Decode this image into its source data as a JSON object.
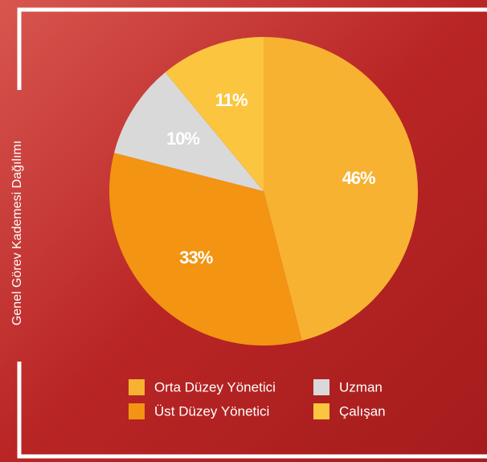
{
  "chart_data": {
    "type": "pie",
    "title": "Genel Görev Kademesi Dağılımı",
    "categories": [
      "Orta Düzey Yönetici",
      "Üst Düzey Yönetici",
      "Uzman",
      "Çalışan"
    ],
    "values": [
      46,
      33,
      10,
      11
    ],
    "value_labels": [
      "46%",
      "33%",
      "10%",
      "11%"
    ],
    "colors": [
      "#f7b232",
      "#f39412",
      "#d9d9d9",
      "#fbc53f"
    ]
  }
}
